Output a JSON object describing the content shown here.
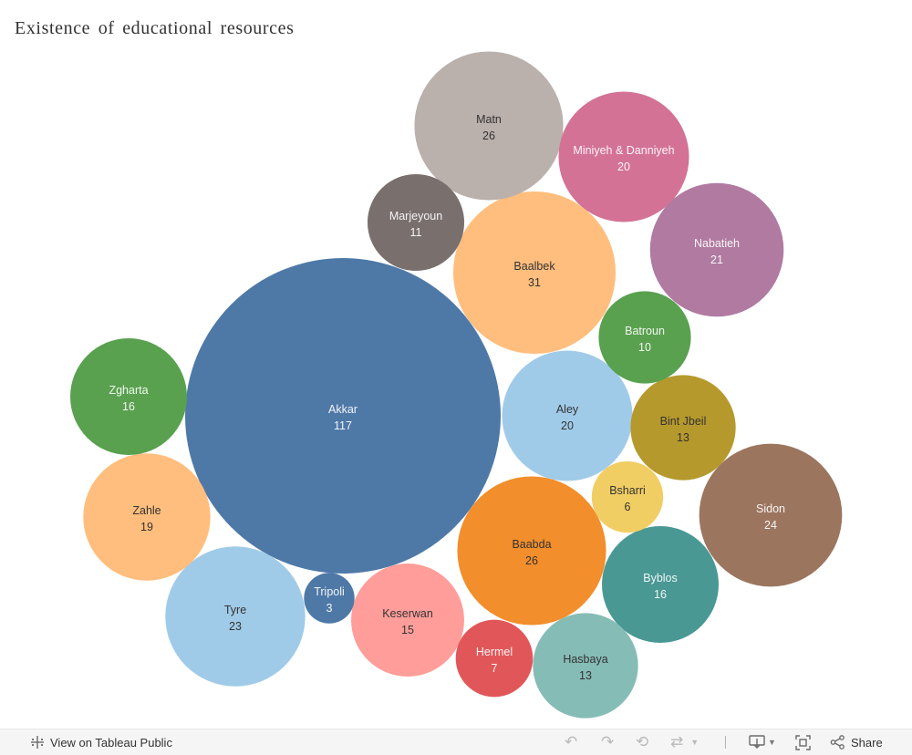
{
  "title": "Existence of educational resources",
  "chart_data": {
    "type": "bubble",
    "title": "Existence of educational resources",
    "bubbles": [
      {
        "label": "Akkar",
        "value": 117,
        "color": "#4e79a7"
      },
      {
        "label": "Baalbek",
        "value": 31,
        "color": "#ffbe7d"
      },
      {
        "label": "Matn",
        "value": 26,
        "color": "#bab0ac"
      },
      {
        "label": "Baabda",
        "value": 26,
        "color": "#f28e2b"
      },
      {
        "label": "Sidon",
        "value": 24,
        "color": "#9c755f"
      },
      {
        "label": "Tyre",
        "value": 23,
        "color": "#a0cbe8"
      },
      {
        "label": "Nabatieh",
        "value": 21,
        "color": "#b07aa1"
      },
      {
        "label": "Miniyeh & Danniyeh",
        "value": 20,
        "color": "#d37295"
      },
      {
        "label": "Aley",
        "value": 20,
        "color": "#a0cbe8"
      },
      {
        "label": "Zahle",
        "value": 19,
        "color": "#ffbe7d"
      },
      {
        "label": "Zgharta",
        "value": 16,
        "color": "#59a14f"
      },
      {
        "label": "Byblos",
        "value": 16,
        "color": "#499894"
      },
      {
        "label": "Keserwan",
        "value": 15,
        "color": "#ff9d9a"
      },
      {
        "label": "Bint Jbeil",
        "value": 13,
        "color": "#b6992d"
      },
      {
        "label": "Hasbaya",
        "value": 13,
        "color": "#86bcb6"
      },
      {
        "label": "Marjeyoun",
        "value": 11,
        "color": "#79706e"
      },
      {
        "label": "Batroun",
        "value": 10,
        "color": "#59a14f"
      },
      {
        "label": "Hermel",
        "value": 7,
        "color": "#e15759"
      },
      {
        "label": "Bsharri",
        "value": 6,
        "color": "#f1ce63"
      },
      {
        "label": "Tripoli",
        "value": 3,
        "color": "#4e79a7"
      }
    ]
  },
  "toolbar": {
    "view_label": "View on Tableau Public",
    "share_label": "Share",
    "icons": {
      "tableau": "tableau-logo-icon",
      "undo": "undo-icon",
      "redo": "redo-icon",
      "revert": "revert-icon",
      "refresh": "refresh-icon",
      "download": "download-icon",
      "fullscreen": "fullscreen-icon",
      "share": "share-icon"
    }
  }
}
